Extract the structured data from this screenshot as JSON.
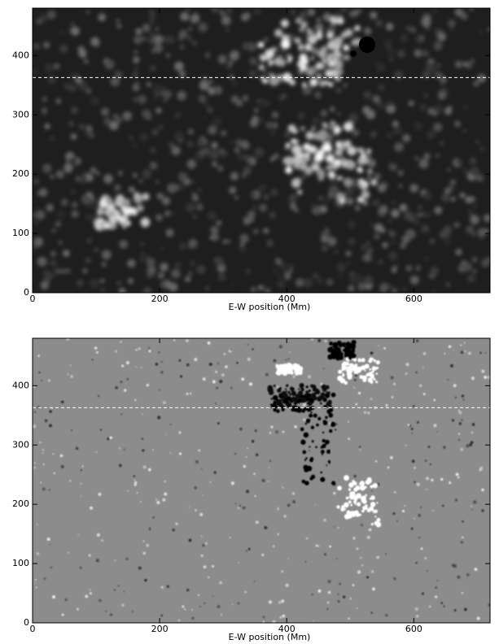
{
  "chart_data": [
    {
      "type": "image",
      "xlabel": "E-W position (Mm)",
      "xlim": [
        0,
        720
      ],
      "ylim": [
        0,
        480
      ],
      "xticks": [
        0,
        200,
        400,
        600
      ],
      "yticks": [
        0,
        100,
        200,
        300,
        400
      ],
      "hline": 363
    },
    {
      "type": "image",
      "xlabel": "E-W position (Mm)",
      "xlim": [
        0,
        720
      ],
      "ylim": [
        0,
        480
      ],
      "xticks": [
        0,
        200,
        400,
        600
      ],
      "yticks": [
        0,
        100,
        200,
        300,
        400
      ],
      "hline": 363
    }
  ]
}
